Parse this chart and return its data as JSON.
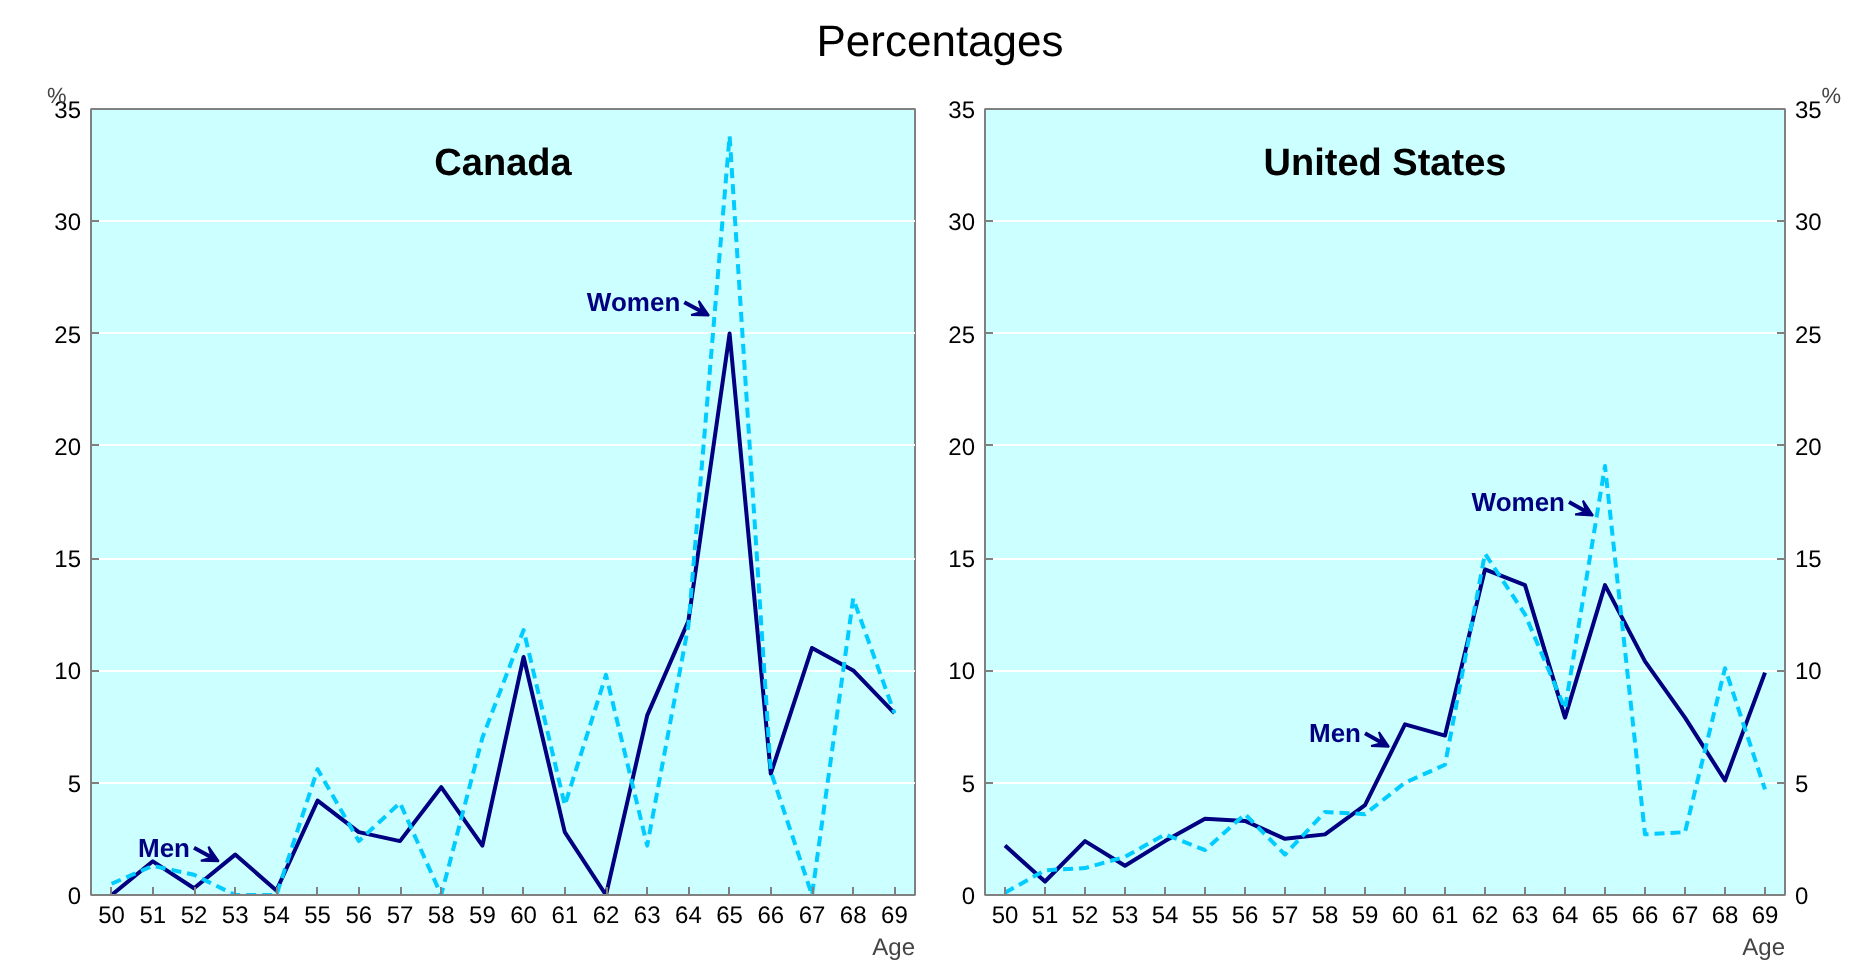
{
  "chart_data": [
    {
      "type": "line",
      "title": "Canada",
      "xlabel": "Age",
      "ylabel": "%",
      "x": [
        50,
        51,
        52,
        53,
        54,
        55,
        56,
        57,
        58,
        59,
        60,
        61,
        62,
        63,
        64,
        65,
        66,
        67,
        68,
        69
      ],
      "series": [
        {
          "color": "#000080",
          "line_style": "solid",
          "values": [
            0,
            1.5,
            0.3,
            1.8,
            0.2,
            4.2,
            2.8,
            2.4,
            4.8,
            2.2,
            10.6,
            2.8,
            0,
            8,
            12.2,
            25,
            5.4,
            11,
            10,
            8.1
          ]
        },
        {
          "color": "#00ccff",
          "line_style": "dashed",
          "values": [
            0.5,
            1.3,
            0.9,
            0,
            0,
            5.6,
            2.4,
            4.1,
            0,
            7,
            11.8,
            4,
            9.8,
            2.2,
            12,
            33.8,
            5.5,
            0,
            13.2,
            8.1
          ]
        }
      ],
      "xlim": [
        49.5,
        69.5
      ],
      "xticks": [
        50,
        51,
        52,
        53,
        54,
        55,
        56,
        57,
        58,
        59,
        60,
        61,
        62,
        63,
        64,
        65,
        66,
        67,
        68,
        69
      ],
      "ylim": [
        0,
        35
      ],
      "yticks": [
        0,
        5,
        10,
        15,
        20,
        25,
        30,
        35
      ],
      "grid": "y",
      "marker": "none",
      "annotations": [
        "Percentages",
        {
          "text": "Men",
          "x": 52.6,
          "y": 1.5
        },
        {
          "text": "Women",
          "x": 64.5,
          "y": 25.8
        }
      ]
    },
    {
      "type": "line",
      "title": "United States",
      "xlabel": "Age",
      "y2label": "%",
      "x": [
        50,
        51,
        52,
        53,
        54,
        55,
        56,
        57,
        58,
        59,
        60,
        61,
        62,
        63,
        64,
        65,
        66,
        67,
        68,
        69
      ],
      "series": [
        {
          "color": "#000080",
          "line_style": "solid",
          "values": [
            2.2,
            0.6,
            2.4,
            1.3,
            2.4,
            3.4,
            3.3,
            2.5,
            2.7,
            4,
            7.6,
            7.1,
            14.5,
            13.8,
            7.9,
            13.8,
            10.4,
            7.9,
            5.1,
            9.9
          ]
        },
        {
          "color": "#00ccff",
          "line_style": "dashed",
          "values": [
            0.1,
            1.1,
            1.2,
            1.7,
            2.7,
            2,
            3.6,
            1.8,
            3.7,
            3.6,
            5,
            5.8,
            15.2,
            12.5,
            8.3,
            19.1,
            2.7,
            2.8,
            10.1,
            4.7
          ]
        }
      ],
      "xlim": [
        49.5,
        69.5
      ],
      "xticks": [
        50,
        51,
        52,
        53,
        54,
        55,
        56,
        57,
        58,
        59,
        60,
        61,
        62,
        63,
        64,
        65,
        66,
        67,
        68,
        69
      ],
      "ylim": [
        0,
        35
      ],
      "yticks": [
        0,
        5,
        10,
        15,
        20,
        25,
        30,
        35
      ],
      "y2lim": [
        0,
        35
      ],
      "y2ticks": [
        0,
        5,
        10,
        15,
        20,
        25,
        30,
        35
      ],
      "grid": "y",
      "marker": "none",
      "annotations": [
        {
          "text": "Women",
          "x": 64.7,
          "y": 16.9
        },
        {
          "text": "Men",
          "x": 59.6,
          "y": 6.6
        }
      ]
    }
  ]
}
